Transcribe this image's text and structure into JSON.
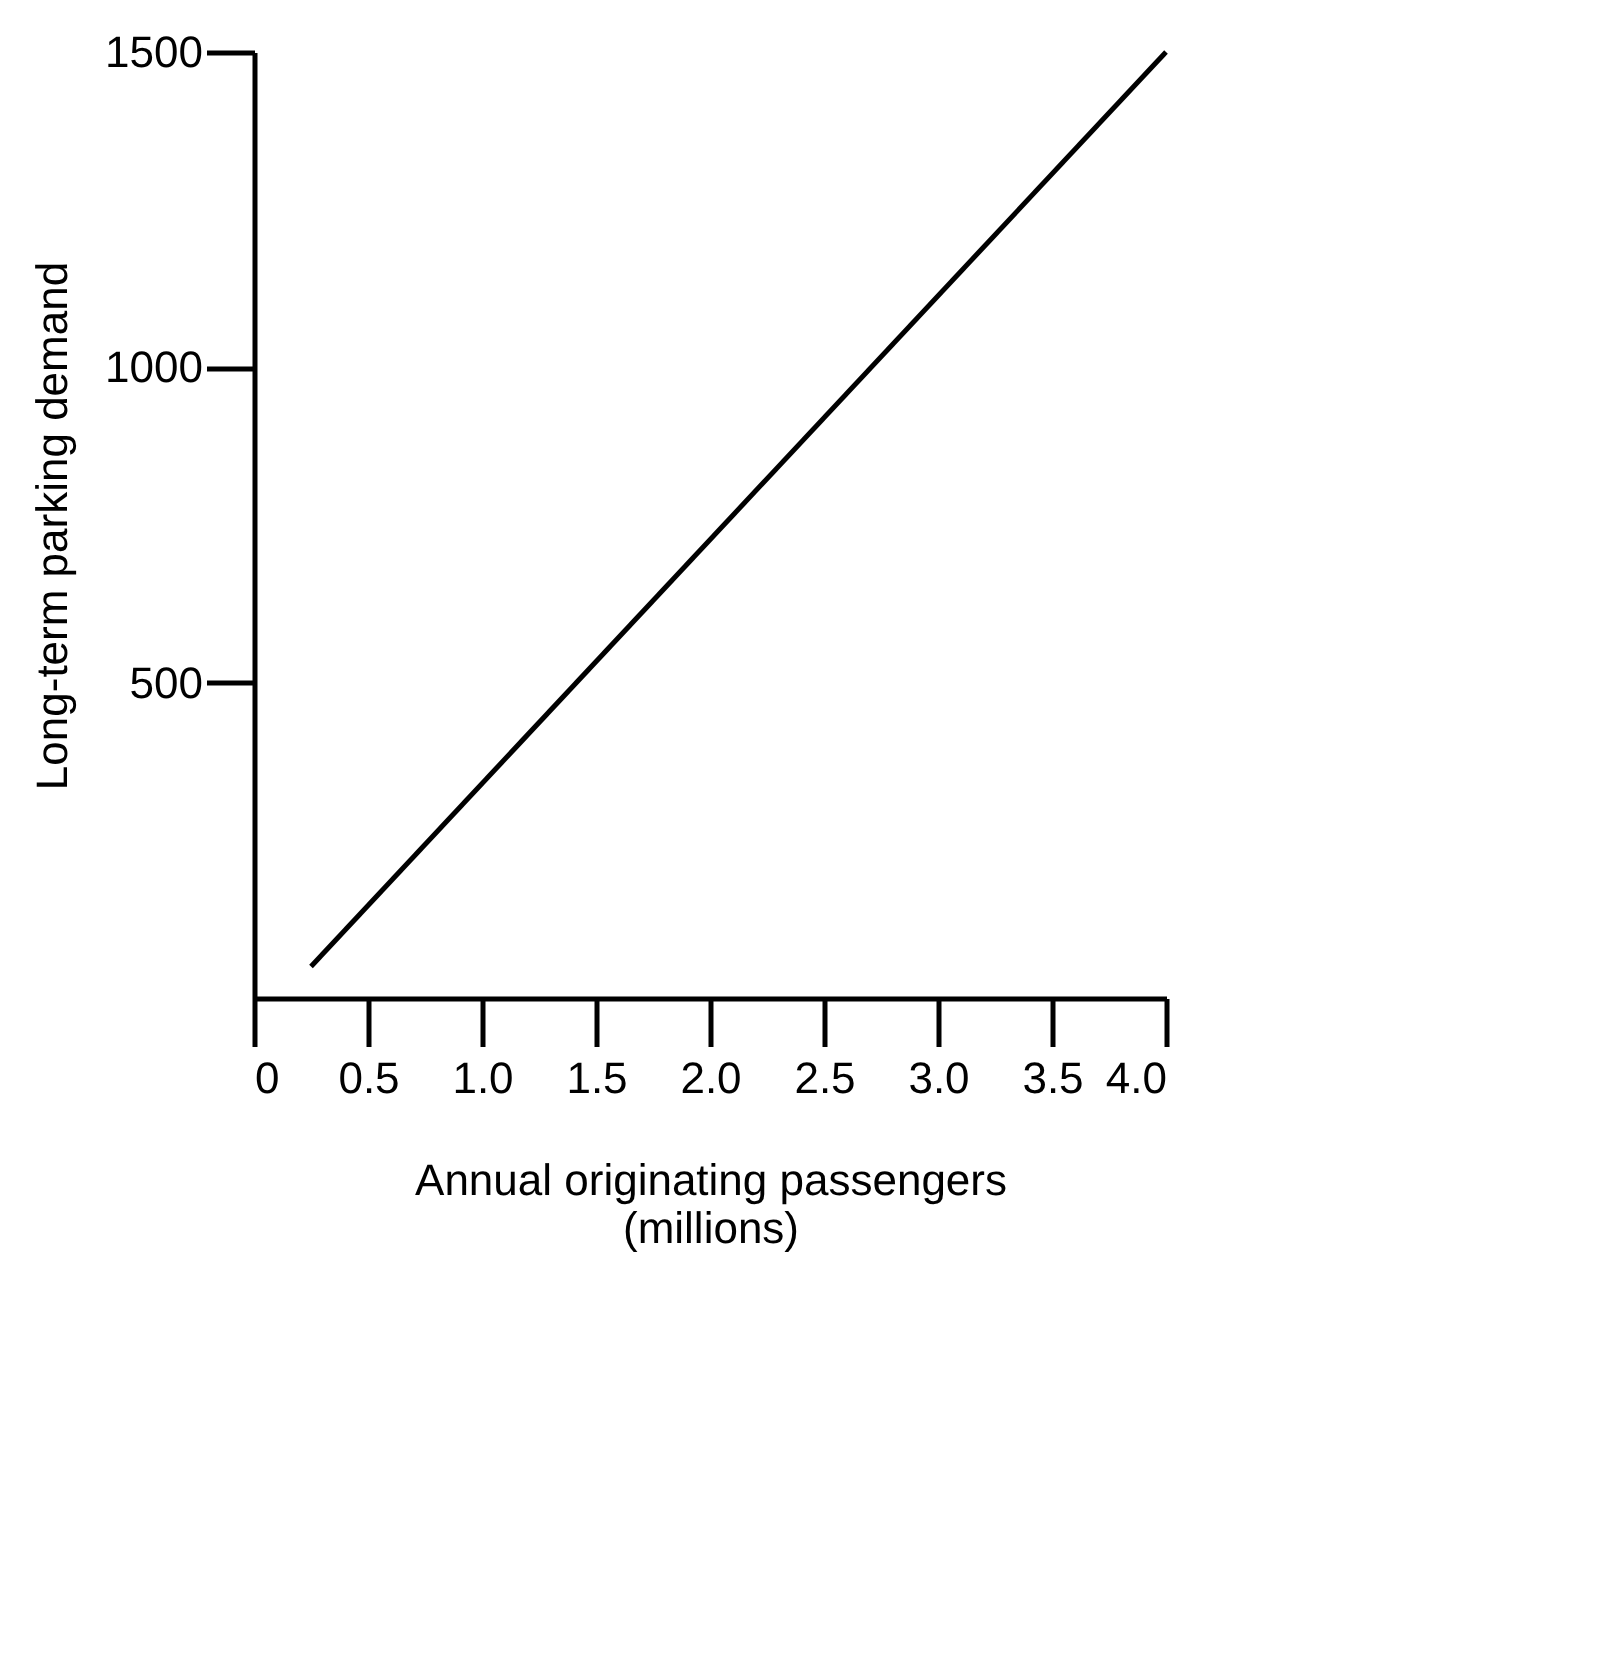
{
  "chart_data": {
    "type": "line",
    "xlabel": "Annual originating passengers\n(millions)",
    "ylabel": "Long-term parking demand",
    "series": [
      {
        "color": "#000000",
        "x": [
          0.25,
          4.0
        ],
        "values": [
          50,
          1500
        ]
      }
    ],
    "xlim": [
      0,
      4.0
    ],
    "xticks": [
      0,
      {
        "value": 0.5,
        "label": "0.5"
      },
      {
        "value": 1,
        "label": "1.0"
      },
      {
        "value": 1.5,
        "label": "1.5"
      },
      {
        "value": 2,
        "label": "2.0"
      },
      {
        "value": 2.5,
        "label": "2.5"
      },
      {
        "value": 3,
        "label": "3.0"
      },
      {
        "value": 3.5,
        "label": "3.5"
      },
      {
        "value": 4,
        "label": "4.0"
      }
    ],
    "ylim": [
      0,
      1500
    ],
    "yticks": [
      500,
      1000,
      1500
    ],
    "grid": false,
    "marker": "none",
    "line_style": "solid"
  }
}
